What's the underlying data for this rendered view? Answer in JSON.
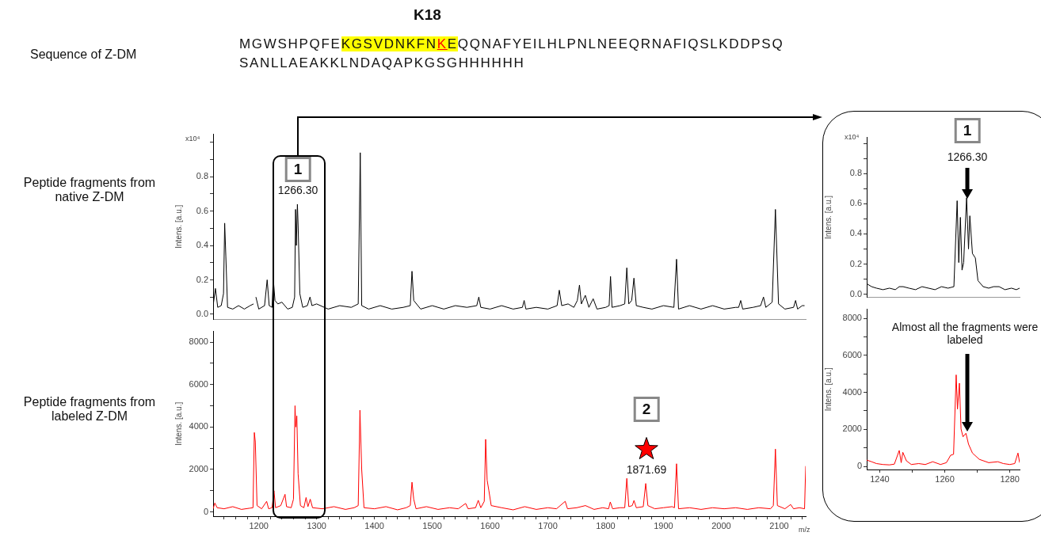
{
  "chart_data": [
    {
      "type": "line",
      "ylabel": "Intens. [a.u.]",
      "color": "#000000",
      "marker": "none",
      "tick_labels": "y",
      "annotations": [
        "Sequence of Z-DM",
        "K18",
        "MGWSHPQFE",
        "KGSVDNKFN",
        "K",
        "E",
        "QQNAFYEILHLPNLNEEQRNAFIQSLKDDPSQ",
        "SANLLAEAKKLNDAQAPKGSGHHHHHH",
        "Peptide fragments from native Z-DM",
        "x10⁴",
        "1266.30",
        "1"
      ],
      "xlim": [
        1121,
        2146
      ],
      "ylim": [
        -0.03,
        1.05
      ],
      "yticks": [
        {
          "value": 0,
          "label": "0.0"
        },
        {
          "value": 0.1,
          "label": null
        },
        0.2,
        {
          "value": 0.3,
          "label": null
        },
        0.4,
        {
          "value": 0.5,
          "label": null
        },
        0.6,
        {
          "value": 0.7,
          "label": null
        },
        0.8,
        {
          "value": 0.9,
          "label": null
        },
        {
          "value": 1.0,
          "label": null
        }
      ],
      "x": [
        1121,
        1125,
        1129,
        1135,
        1139,
        1141,
        1143,
        1146,
        1155,
        1165,
        1175,
        1185,
        1191,
        1193,
        1195,
        1200,
        1210,
        1214.5,
        1218,
        1223,
        1225,
        1228,
        1233,
        1240,
        1250,
        1258,
        1262,
        1263.6,
        1265,
        1266.8,
        1268,
        1271,
        1276,
        1284,
        1288.6,
        1292,
        1300,
        1320,
        1340,
        1360,
        1372,
        1375.5,
        1378,
        1390,
        1410,
        1430,
        1450,
        1462,
        1465,
        1468,
        1480,
        1500,
        1520,
        1540,
        1560,
        1577,
        1580.6,
        1584,
        1600,
        1620,
        1640,
        1656,
        1659,
        1662,
        1680,
        1700,
        1716,
        1719.8,
        1724,
        1735,
        1745,
        1751,
        1754.7,
        1758,
        1764.8,
        1771,
        1778.4,
        1785,
        1800,
        1806,
        1808.4,
        1811,
        1825,
        1833,
        1836.6,
        1840,
        1845,
        1848.9,
        1853,
        1865,
        1880,
        1900,
        1918,
        1922.6,
        1926,
        1945,
        1965,
        1985,
        2005,
        2025,
        2030,
        2033.6,
        2037,
        2055,
        2068,
        2073,
        2077,
        2088,
        2093.6,
        2099,
        2110,
        2125,
        2128.5,
        2132,
        2140,
        2144
      ],
      "values": [
        0.05,
        0.15,
        0.04,
        0.05,
        0.12,
        0.53,
        0.34,
        0.04,
        0.03,
        0.05,
        0.03,
        0.05,
        0.06,
        null,
        0.1,
        0.03,
        0.05,
        0.2,
        0.05,
        0.04,
        0.21,
        0.08,
        0.06,
        0.07,
        0.03,
        0.04,
        0.1,
        0.61,
        0.4,
        0.64,
        0.52,
        0.12,
        0.04,
        0.05,
        0.1,
        0.05,
        0.06,
        0.03,
        0.05,
        0.04,
        0.06,
        0.94,
        0.05,
        0.03,
        0.05,
        0.03,
        0.04,
        0.05,
        0.25,
        0.08,
        0.03,
        0.05,
        0.03,
        0.05,
        0.04,
        0.05,
        0.1,
        0.04,
        0.03,
        0.05,
        0.03,
        0.04,
        0.08,
        0.03,
        0.04,
        0.03,
        0.05,
        0.14,
        0.05,
        0.06,
        0.04,
        0.08,
        0.17,
        0.06,
        0.11,
        0.04,
        0.09,
        0.03,
        0.04,
        0.05,
        0.22,
        0.04,
        0.05,
        0.06,
        0.27,
        0.06,
        0.08,
        0.21,
        0.05,
        0.04,
        0.03,
        0.05,
        0.04,
        0.32,
        0.03,
        0.05,
        0.03,
        0.05,
        0.03,
        0.04,
        0.04,
        0.08,
        0.03,
        0.04,
        0.05,
        0.1,
        0.04,
        0.07,
        0.61,
        0.06,
        0.03,
        0.04,
        0.08,
        0.03,
        0.05,
        0.05
      ]
    },
    {
      "type": "line",
      "ylabel": "Intens. [a.u.]",
      "xlabel": "m/z",
      "color": "#ff0000",
      "marker": "none",
      "annotations": [
        "Peptide fragments from labeled Z-DM",
        "1871.69",
        "2"
      ],
      "xlim": [
        1121,
        2146
      ],
      "ylim": [
        -200,
        8500
      ],
      "xticks": [
        {
          "value": 1140,
          "label": null
        },
        {
          "value": 1160,
          "label": null
        },
        {
          "value": 1180,
          "label": null
        },
        1200,
        {
          "value": 1220,
          "label": null
        },
        {
          "value": 1240,
          "label": null
        },
        {
          "value": 1260,
          "label": null
        },
        {
          "value": 1280,
          "label": null
        },
        1300,
        {
          "value": 1320,
          "label": null
        },
        {
          "value": 1340,
          "label": null
        },
        {
          "value": 1360,
          "label": null
        },
        {
          "value": 1380,
          "label": null
        },
        1400,
        {
          "value": 1420,
          "label": null
        },
        {
          "value": 1440,
          "label": null
        },
        {
          "value": 1460,
          "label": null
        },
        {
          "value": 1480,
          "label": null
        },
        1500,
        {
          "value": 1520,
          "label": null
        },
        {
          "value": 1540,
          "label": null
        },
        {
          "value": 1560,
          "label": null
        },
        {
          "value": 1580,
          "label": null
        },
        1600,
        {
          "value": 1620,
          "label": null
        },
        {
          "value": 1640,
          "label": null
        },
        {
          "value": 1660,
          "label": null
        },
        {
          "value": 1680,
          "label": null
        },
        1700,
        {
          "value": 1720,
          "label": null
        },
        {
          "value": 1740,
          "label": null
        },
        {
          "value": 1760,
          "label": null
        },
        {
          "value": 1780,
          "label": null
        },
        1800,
        {
          "value": 1820,
          "label": null
        },
        {
          "value": 1840,
          "label": null
        },
        {
          "value": 1860,
          "label": null
        },
        {
          "value": 1880,
          "label": null
        },
        1900,
        {
          "value": 1920,
          "label": null
        },
        {
          "value": 1940,
          "label": null
        },
        {
          "value": 1960,
          "label": null
        },
        {
          "value": 1980,
          "label": null
        },
        2000,
        {
          "value": 2020,
          "label": null
        },
        {
          "value": 2040,
          "label": null
        },
        {
          "value": 2060,
          "label": null
        },
        {
          "value": 2080,
          "label": null
        },
        2100,
        {
          "value": 2120,
          "label": null
        },
        {
          "value": 2140,
          "label": null
        }
      ],
      "yticks": [
        0,
        {
          "value": 1000,
          "label": null
        },
        2000,
        {
          "value": 3000,
          "label": null
        },
        4000,
        {
          "value": 5000,
          "label": null
        },
        6000,
        {
          "value": 7000,
          "label": null
        },
        8000
      ],
      "x": [
        1121,
        1124,
        1128,
        1140,
        1155,
        1170,
        1185,
        1190,
        1192.3,
        1194,
        1197,
        1205,
        1213.6,
        1217,
        1223,
        1226.3,
        1229,
        1238,
        1245.4,
        1248,
        1256,
        1260,
        1262.7,
        1264,
        1265.8,
        1268,
        1272,
        1278,
        1281.8,
        1285,
        1289,
        1293,
        1310,
        1330,
        1350,
        1365,
        1372,
        1375,
        1378,
        1382,
        1400,
        1420,
        1440,
        1455,
        1462,
        1465,
        1468,
        1472,
        1490,
        1510,
        1530,
        1545,
        1557.8,
        1562,
        1575,
        1579.6,
        1584,
        1590,
        1592.4,
        1595,
        1598,
        1602,
        1620,
        1640,
        1660,
        1680,
        1700,
        1715,
        1730,
        1734,
        1750,
        1765,
        1780,
        1795,
        1805,
        1808,
        1812,
        1825,
        1833,
        1836.6,
        1840,
        1846,
        1849,
        1853,
        1865,
        1869.3,
        1873,
        1885,
        1900,
        1915,
        1919,
        1922.6,
        1926,
        1945,
        1965,
        1985,
        2005,
        2025,
        2045,
        2065,
        2085,
        2090,
        2093.6,
        2097,
        2110,
        2120,
        2125,
        2135,
        2144,
        2146
      ],
      "values": [
        150,
        420,
        200,
        150,
        250,
        120,
        180,
        200,
        3740,
        3300,
        300,
        150,
        500,
        150,
        200,
        1000,
        200,
        300,
        830,
        250,
        200,
        600,
        5000,
        4000,
        4520,
        1800,
        300,
        200,
        680,
        250,
        600,
        200,
        150,
        250,
        120,
        200,
        300,
        4790,
        2000,
        200,
        150,
        250,
        100,
        200,
        300,
        1400,
        600,
        150,
        250,
        120,
        200,
        150,
        400,
        150,
        200,
        550,
        200,
        500,
        3420,
        1500,
        1000,
        300,
        200,
        100,
        250,
        120,
        200,
        150,
        500,
        150,
        200,
        300,
        120,
        200,
        150,
        470,
        150,
        200,
        200,
        1580,
        250,
        300,
        540,
        200,
        250,
        1340,
        300,
        150,
        200,
        250,
        200,
        2270,
        150,
        200,
        120,
        200,
        150,
        200,
        120,
        200,
        150,
        300,
        2960,
        300,
        150,
        350,
        150,
        200,
        150,
        2160
      ]
    },
    {
      "type": "line",
      "ylabel": "Intens. [a.u.]",
      "color": "#000000",
      "marker": "none",
      "tick_labels": "y",
      "annotations": [
        "x10⁴",
        "1266.30",
        "1"
      ],
      "xlim": [
        1236,
        1283
      ],
      "ylim": [
        -0.02,
        1.04
      ],
      "yticks": [
        {
          "value": 0,
          "label": "0.0"
        },
        {
          "value": 0.1,
          "label": null
        },
        0.2,
        {
          "value": 0.3,
          "label": null
        },
        0.4,
        {
          "value": 0.5,
          "label": null
        },
        0.6,
        {
          "value": 0.7,
          "label": null
        },
        0.8,
        {
          "value": 0.9,
          "label": null
        },
        {
          "value": 1.0,
          "label": null
        }
      ],
      "x": [
        1236,
        1237.5,
        1239,
        1241,
        1243,
        1244.8,
        1246,
        1247.2,
        1249,
        1251,
        1253,
        1255,
        1257,
        1259,
        1261,
        1262.8,
        1263.8,
        1264.3,
        1264.8,
        1265.3,
        1265.8,
        1266.7,
        1267.3,
        1267.7,
        1268.5,
        1269.4,
        1270.2,
        1271.8,
        1273.5,
        1275,
        1276.7,
        1278.5,
        1280.5,
        1282,
        1283
      ],
      "values": [
        0.07,
        0.05,
        0.04,
        0.03,
        0.04,
        0.03,
        0.05,
        0.05,
        0.04,
        0.03,
        0.05,
        0.04,
        0.03,
        0.05,
        0.04,
        0.05,
        0.62,
        0.21,
        0.51,
        0.16,
        0.21,
        0.64,
        0.3,
        0.52,
        0.27,
        0.24,
        0.09,
        0.05,
        0.04,
        0.05,
        0.05,
        0.03,
        0.04,
        0.03,
        0.04
      ]
    },
    {
      "type": "line",
      "ylabel": "Intens. [a.u.]",
      "color": "#ff0000",
      "marker": "none",
      "annotations": [
        "Almost all the fragments were labeled"
      ],
      "xlim": [
        1236,
        1283
      ],
      "ylim": [
        -170,
        8500
      ],
      "xticks": [
        1240,
        {
          "value": 1250,
          "label": null
        },
        1260,
        {
          "value": 1270,
          "label": null
        },
        1280
      ],
      "yticks": [
        0,
        {
          "value": 1000,
          "label": null
        },
        2000,
        {
          "value": 3000,
          "label": null
        },
        4000,
        {
          "value": 5000,
          "label": null
        },
        6000,
        {
          "value": 7000,
          "label": null
        },
        8000
      ],
      "x": [
        1236,
        1237.5,
        1239,
        1241,
        1243,
        1244.5,
        1246,
        1246.6,
        1247.1,
        1248.2,
        1249.7,
        1252,
        1254,
        1256.3,
        1258.7,
        1260.5,
        1261.8,
        1262.7,
        1263.5,
        1263.9,
        1264.5,
        1265,
        1265.6,
        1266.5,
        1267.3,
        1268.5,
        1270.6,
        1273.5,
        1276.3,
        1278,
        1280,
        1281.5,
        1282.5,
        1283
      ],
      "values": [
        340,
        250,
        150,
        100,
        80,
        120,
        860,
        200,
        760,
        300,
        100,
        150,
        100,
        250,
        100,
        200,
        600,
        650,
        4950,
        3100,
        4500,
        2020,
        1600,
        1790,
        1200,
        720,
        380,
        200,
        250,
        150,
        100,
        150,
        720,
        200
      ]
    }
  ]
}
